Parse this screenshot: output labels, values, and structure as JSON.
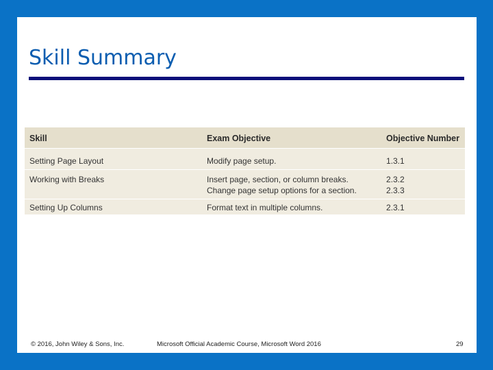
{
  "slide": {
    "title": "Skill Summary"
  },
  "table": {
    "headers": [
      "Skill",
      "Exam Objective",
      "Objective Number"
    ],
    "rows": [
      {
        "skill": "Setting Page Layout",
        "objectives": [
          "Modify page setup."
        ],
        "numbers": [
          "1.3.1"
        ]
      },
      {
        "skill": "Working with Breaks",
        "objectives": [
          "Insert page, section, or column breaks.",
          "Change page setup options for a section."
        ],
        "numbers": [
          "2.3.2",
          "2.3.3"
        ]
      },
      {
        "skill": "Setting Up Columns",
        "objectives": [
          "Format text in multiple columns."
        ],
        "numbers": [
          "2.3.1"
        ]
      }
    ]
  },
  "footer": {
    "copyright": "© 2016, John Wiley & Sons, Inc.",
    "course": "Microsoft Official Academic Course, Microsoft Word 2016",
    "page_number": "29"
  },
  "colors": {
    "background": "#0a72c6",
    "title": "#0b5db0",
    "title_rule": "#0b0f7a",
    "table_header": "#e5dfcc",
    "table_body": "#f0ece0"
  }
}
